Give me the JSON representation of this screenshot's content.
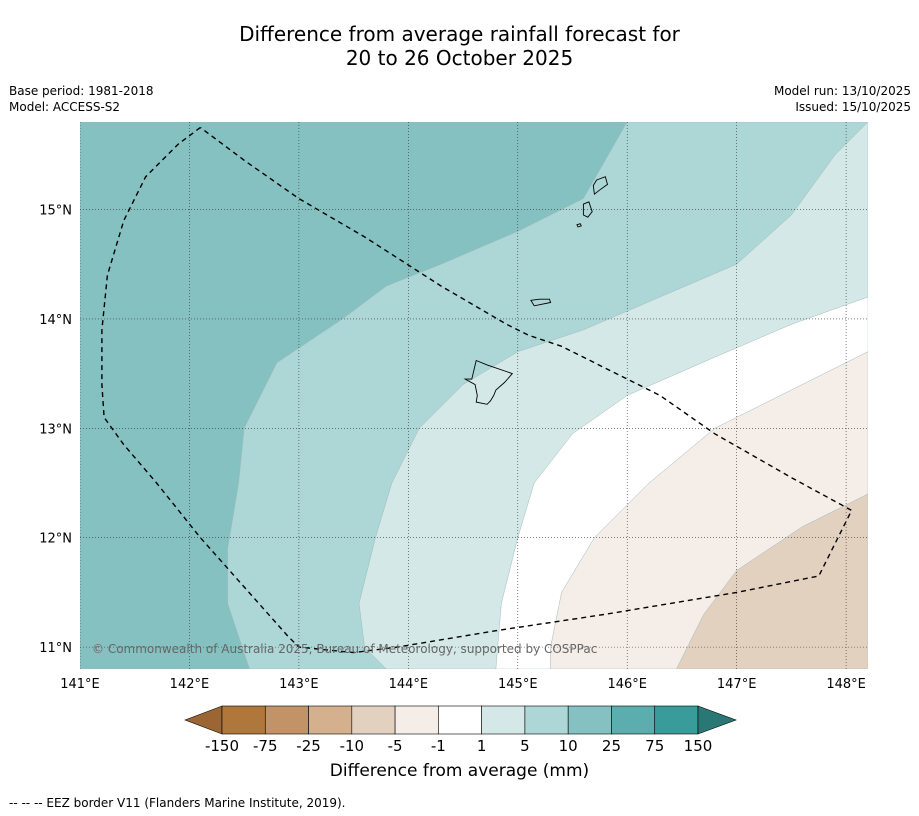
{
  "title": {
    "line1": "Difference from average rainfall forecast for",
    "line2": "20 to 26 October 2025"
  },
  "meta": {
    "base_period": "Base period: 1981-2018",
    "model": "Model: ACCESS-S2",
    "model_run": "Model run: 13/10/2025",
    "issued": "Issued: 15/10/2025"
  },
  "map": {
    "lon_range": [
      141.0,
      148.2
    ],
    "lat_range": [
      10.8,
      15.8
    ],
    "lon_ticks": [
      {
        "value": 141,
        "label": "141°E"
      },
      {
        "value": 142,
        "label": "142°E"
      },
      {
        "value": 143,
        "label": "143°E"
      },
      {
        "value": 144,
        "label": "144°E"
      },
      {
        "value": 145,
        "label": "145°E"
      },
      {
        "value": 146,
        "label": "146°E"
      },
      {
        "value": 147,
        "label": "147°E"
      },
      {
        "value": 148,
        "label": "148°E"
      }
    ],
    "lat_ticks": [
      {
        "value": 15,
        "label": "15°N"
      },
      {
        "value": 14,
        "label": "14°N"
      },
      {
        "value": 13,
        "label": "13°N"
      },
      {
        "value": 12,
        "label": "12°N"
      },
      {
        "value": 11,
        "label": "11°N"
      }
    ],
    "copyright": "© Commonwealth of Australia 2025, Bureau of Meteorology, supported by COSPPac",
    "zones": [
      {
        "name": "10-25",
        "color": "#85c1c0",
        "border": [
          [
            141.0,
            15.8
          ],
          [
            146.0,
            15.8
          ],
          [
            145.6,
            15.1
          ],
          [
            145.0,
            14.8
          ],
          [
            144.3,
            14.5
          ],
          [
            143.8,
            14.3
          ],
          [
            143.4,
            14.0
          ],
          [
            142.8,
            13.6
          ],
          [
            142.5,
            13.0
          ],
          [
            142.45,
            12.5
          ],
          [
            142.35,
            11.9
          ],
          [
            142.35,
            11.4
          ],
          [
            142.55,
            10.8
          ],
          [
            141.0,
            10.8
          ]
        ]
      },
      {
        "name": "5-10",
        "color": "#add6d6",
        "border": [
          [
            146.0,
            15.8
          ],
          [
            148.2,
            15.8
          ],
          [
            147.9,
            15.5
          ],
          [
            147.5,
            14.95
          ],
          [
            147.0,
            14.5
          ],
          [
            146.3,
            14.2
          ],
          [
            145.6,
            13.9
          ],
          [
            145.0,
            13.7
          ],
          [
            144.5,
            13.4
          ],
          [
            144.1,
            13.0
          ],
          [
            143.85,
            12.5
          ],
          [
            143.7,
            12.0
          ],
          [
            143.55,
            11.4
          ],
          [
            143.6,
            11.0
          ],
          [
            143.8,
            10.8
          ],
          [
            142.55,
            10.8
          ],
          [
            142.35,
            11.4
          ],
          [
            142.35,
            11.9
          ],
          [
            142.45,
            12.5
          ],
          [
            142.5,
            13.0
          ],
          [
            142.8,
            13.6
          ],
          [
            143.4,
            14.0
          ],
          [
            143.8,
            14.3
          ],
          [
            144.3,
            14.5
          ],
          [
            145.0,
            14.8
          ],
          [
            145.6,
            15.1
          ]
        ]
      },
      {
        "name": "1-5",
        "color": "#d5e8e8",
        "border": [
          [
            148.2,
            15.8
          ],
          [
            148.2,
            14.2
          ],
          [
            147.5,
            13.95
          ],
          [
            146.8,
            13.65
          ],
          [
            146.0,
            13.3
          ],
          [
            145.5,
            12.95
          ],
          [
            145.15,
            12.5
          ],
          [
            145.0,
            12.0
          ],
          [
            144.85,
            11.4
          ],
          [
            144.8,
            10.8
          ],
          [
            143.8,
            10.8
          ],
          [
            143.6,
            11.0
          ],
          [
            143.55,
            11.4
          ],
          [
            143.7,
            12.0
          ],
          [
            143.85,
            12.5
          ],
          [
            144.1,
            13.0
          ],
          [
            144.5,
            13.4
          ],
          [
            145.0,
            13.7
          ],
          [
            145.6,
            13.9
          ],
          [
            146.3,
            14.2
          ],
          [
            147.0,
            14.5
          ],
          [
            147.5,
            14.95
          ],
          [
            147.9,
            15.5
          ]
        ]
      },
      {
        "name": "-1-1",
        "color": "#ffffff",
        "border": [
          [
            148.2,
            14.2
          ],
          [
            148.2,
            13.7
          ],
          [
            147.5,
            13.35
          ],
          [
            146.8,
            13.0
          ],
          [
            146.2,
            12.5
          ],
          [
            145.7,
            12.0
          ],
          [
            145.4,
            11.5
          ],
          [
            145.3,
            11.0
          ],
          [
            145.3,
            10.8
          ],
          [
            144.8,
            10.8
          ],
          [
            144.85,
            11.4
          ],
          [
            145.0,
            12.0
          ],
          [
            145.15,
            12.5
          ],
          [
            145.5,
            12.95
          ],
          [
            146.0,
            13.3
          ],
          [
            146.8,
            13.65
          ],
          [
            147.5,
            13.95
          ]
        ]
      },
      {
        "name": "-5--1",
        "color": "#f4ede8",
        "border": [
          [
            148.2,
            13.7
          ],
          [
            148.2,
            12.4
          ],
          [
            147.6,
            12.1
          ],
          [
            147.0,
            11.7
          ],
          [
            146.7,
            11.3
          ],
          [
            146.45,
            10.8
          ],
          [
            145.3,
            10.8
          ],
          [
            145.3,
            11.0
          ],
          [
            145.4,
            11.5
          ],
          [
            145.7,
            12.0
          ],
          [
            146.2,
            12.5
          ],
          [
            146.8,
            13.0
          ],
          [
            147.5,
            13.35
          ]
        ]
      },
      {
        "name": "-10--5",
        "color": "#e3d1c0",
        "border": [
          [
            148.2,
            12.4
          ],
          [
            148.2,
            10.8
          ],
          [
            146.45,
            10.8
          ],
          [
            146.7,
            11.3
          ],
          [
            147.0,
            11.7
          ],
          [
            147.6,
            12.1
          ]
        ]
      }
    ],
    "islands": [
      {
        "name": "guam",
        "points": [
          [
            144.62,
            13.62
          ],
          [
            144.72,
            13.58
          ],
          [
            144.95,
            13.5
          ],
          [
            144.88,
            13.42
          ],
          [
            144.8,
            13.35
          ],
          [
            144.78,
            13.3
          ],
          [
            144.75,
            13.25
          ],
          [
            144.72,
            13.22
          ],
          [
            144.62,
            13.24
          ],
          [
            144.63,
            13.3
          ],
          [
            144.61,
            13.4
          ],
          [
            144.52,
            13.45
          ],
          [
            144.58,
            13.45
          ]
        ]
      },
      {
        "name": "rota",
        "points": [
          [
            145.12,
            14.17
          ],
          [
            145.2,
            14.18
          ],
          [
            145.29,
            14.18
          ],
          [
            145.3,
            14.15
          ],
          [
            145.2,
            14.13
          ],
          [
            145.15,
            14.12
          ]
        ]
      },
      {
        "name": "tinian",
        "points": [
          [
            145.6,
            15.05
          ],
          [
            145.65,
            15.07
          ],
          [
            145.68,
            14.98
          ],
          [
            145.64,
            14.93
          ],
          [
            145.6,
            14.95
          ]
        ]
      },
      {
        "name": "saipan",
        "points": [
          [
            145.72,
            15.27
          ],
          [
            145.8,
            15.3
          ],
          [
            145.82,
            15.23
          ],
          [
            145.75,
            15.18
          ],
          [
            145.7,
            15.14
          ],
          [
            145.69,
            15.22
          ]
        ]
      },
      {
        "name": "aguijan",
        "points": [
          [
            145.54,
            14.86
          ],
          [
            145.57,
            14.87
          ],
          [
            145.58,
            14.85
          ],
          [
            145.55,
            14.84
          ]
        ]
      }
    ],
    "eez": [
      [
        142.1,
        15.75
      ],
      [
        141.9,
        15.6
      ],
      [
        141.6,
        15.3
      ],
      [
        141.4,
        14.9
      ],
      [
        141.25,
        14.4
      ],
      [
        141.2,
        13.9
      ],
      [
        141.2,
        13.4
      ],
      [
        141.22,
        13.1
      ],
      [
        141.4,
        12.85
      ],
      [
        141.7,
        12.5
      ],
      [
        142.1,
        12.0
      ],
      [
        142.5,
        11.55
      ],
      [
        142.9,
        11.1
      ],
      [
        143.0,
        11.0
      ],
      [
        143.5,
        10.95
      ],
      [
        143.9,
        11.0
      ],
      [
        144.8,
        11.15
      ],
      [
        145.8,
        11.3
      ],
      [
        147.0,
        11.5
      ],
      [
        147.75,
        11.65
      ],
      [
        148.05,
        12.25
      ],
      [
        147.5,
        12.55
      ],
      [
        146.8,
        12.95
      ],
      [
        146.3,
        13.3
      ],
      [
        145.7,
        13.6
      ],
      [
        145.4,
        13.75
      ],
      [
        145.1,
        13.85
      ],
      [
        144.9,
        13.95
      ],
      [
        144.3,
        14.3
      ],
      [
        143.6,
        14.75
      ],
      [
        143.0,
        15.1
      ],
      [
        142.5,
        15.45
      ],
      [
        142.1,
        15.75
      ]
    ]
  },
  "colorbar": {
    "label": "Difference from average (mm)",
    "ticks": [
      "-150",
      "-75",
      "-25",
      "-10",
      "-5",
      "-1",
      "1",
      "5",
      "10",
      "25",
      "75",
      "150"
    ],
    "colors": [
      "#9b6534",
      "#b0773d",
      "#c29366",
      "#d5b08e",
      "#e3d1c0",
      "#f4ede8",
      "#ffffff",
      "#d5e8e8",
      "#add6d6",
      "#85c1c0",
      "#5cadad",
      "#3a9c9a",
      "#2a7876"
    ]
  },
  "footnote": "--  --  -- EEZ border V11 (Flanders Marine Institute, 2019)."
}
